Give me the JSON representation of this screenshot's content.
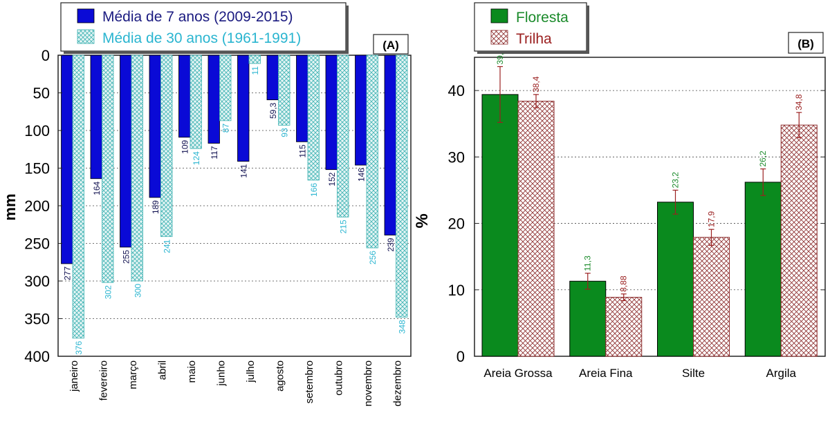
{
  "colors": {
    "bar_a7": "#0a0ad6",
    "hatch_a30": "#3fb3b3",
    "hatch_a30_bg": "#e6f5f5",
    "label_a7": "#101050",
    "label_a30": "#2ab5d0",
    "bar_floresta": "#0a8a1e",
    "hatch_trilha": "#8b2a2a",
    "label_floresta": "#1a8a2a",
    "label_trilha": "#9b2020",
    "error_bar": "#9b2020"
  },
  "chart_data": [
    {
      "type": "bar",
      "panel_label": "(A)",
      "orientation": "vertical-inverted",
      "ylabel": "mm",
      "ylim": [
        0,
        400
      ],
      "yticks": [
        "0",
        "50",
        "100",
        "150",
        "200",
        "250",
        "300",
        "350",
        "400"
      ],
      "grid": "horizontal-dotted",
      "legend_position": "top-left",
      "categories": [
        "janeiro",
        "fevereiro",
        "março",
        "abril",
        "maio",
        "junho",
        "julho",
        "agosto",
        "setembro",
        "outubro",
        "novembro",
        "dezembro"
      ],
      "series": [
        {
          "name": "Média de 7 anos (2009-2015)",
          "style": "solid",
          "values": [
            277,
            164,
            255,
            189,
            109,
            117,
            141,
            59.3,
            115,
            152,
            146,
            239
          ],
          "value_labels": [
            "277",
            "164",
            "255",
            "189",
            "109",
            "117",
            "141",
            "59,3",
            "115",
            "152",
            "146",
            "239"
          ]
        },
        {
          "name": "Média de 30 anos (1961-1991)",
          "style": "crosshatch",
          "values": [
            376,
            302,
            300,
            241,
            124,
            87,
            11,
            93,
            166,
            215,
            256,
            348
          ],
          "value_labels": [
            "376",
            "302",
            "300",
            "241",
            "124",
            "87",
            "11",
            "93",
            "166",
            "215",
            "256",
            "348"
          ]
        }
      ]
    },
    {
      "type": "bar",
      "panel_label": "(B)",
      "ylabel": "%",
      "ylim": [
        0,
        45
      ],
      "yticks": [
        "0",
        "10",
        "20",
        "30",
        "40"
      ],
      "grid": "horizontal-dotted",
      "legend_position": "top-left",
      "categories": [
        "Areia Grossa",
        "Areia Fina",
        "Silte",
        "Argila"
      ],
      "series": [
        {
          "name": "Floresta",
          "style": "solid",
          "values": [
            39.4,
            11.3,
            23.2,
            26.2
          ],
          "value_labels": [
            "39,4",
            "11,3",
            "23,2",
            "26,2"
          ],
          "error": [
            4.2,
            1.2,
            1.8,
            2.0
          ]
        },
        {
          "name": "Trilha",
          "style": "crosshatch",
          "values": [
            38.4,
            8.88,
            17.9,
            34.8
          ],
          "value_labels": [
            "38,4",
            "8,88",
            "17,9",
            "34,8"
          ],
          "error": [
            1.0,
            0.5,
            1.2,
            1.9
          ]
        }
      ]
    }
  ]
}
